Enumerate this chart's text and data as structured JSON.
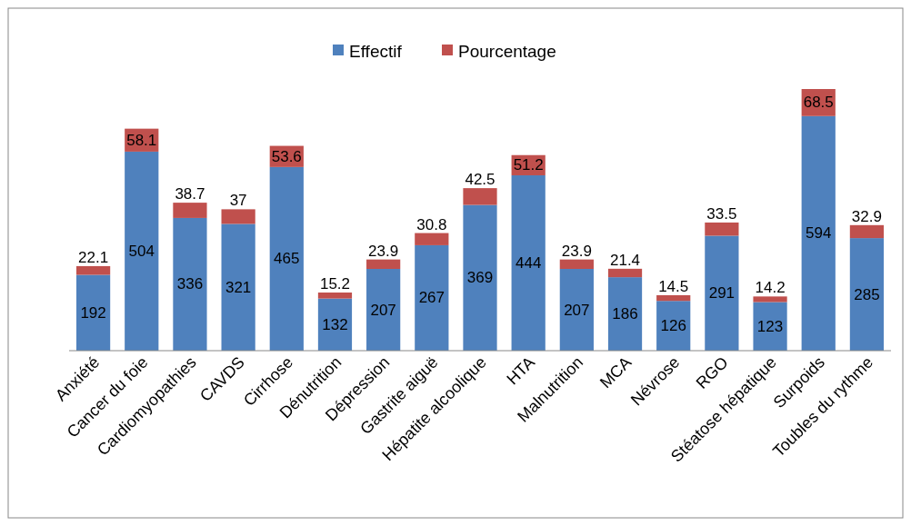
{
  "chart_data": {
    "type": "bar",
    "stacked": true,
    "data_labels": true,
    "legend": "top",
    "categories": [
      "Anxiété",
      "Cancer du foie",
      "Cardiomyopathies",
      "CAVDS",
      "Cirrhose",
      "Dénutrition",
      "Dépression",
      "Gastrite aiguë",
      "Hépatite alcoolique",
      "HTA",
      "Malnutrition",
      "MCA",
      "Névrose",
      "RGO",
      "Stéatose hépatique",
      "Surpoids",
      "Toubles du rythme"
    ],
    "series": [
      {
        "name": "Effectif",
        "color": "#4f81bd",
        "values": [
          192,
          504,
          336,
          321,
          465,
          132,
          207,
          267,
          369,
          444,
          207,
          186,
          126,
          291,
          123,
          594,
          285
        ]
      },
      {
        "name": "Pourcentage",
        "color": "#c0504d",
        "values": [
          22.1,
          58.1,
          38.7,
          37,
          53.6,
          15.2,
          23.9,
          30.8,
          42.5,
          51.2,
          23.9,
          21.4,
          14.5,
          33.5,
          14.2,
          68.5,
          32.9
        ]
      }
    ]
  }
}
